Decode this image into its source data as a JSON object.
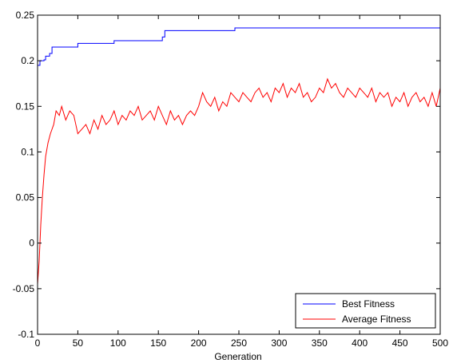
{
  "chart_data": {
    "type": "line",
    "title": "",
    "xlabel": "Generation",
    "ylabel": "",
    "xlim": [
      0,
      500
    ],
    "ylim": [
      -0.1,
      0.25
    ],
    "x_ticks": [
      0,
      50,
      100,
      150,
      200,
      250,
      300,
      350,
      400,
      450,
      500
    ],
    "y_ticks": [
      -0.1,
      -0.05,
      0,
      0.05,
      0.1,
      0.15,
      0.2,
      0.25
    ],
    "x_tick_labels": [
      "0",
      "50",
      "100",
      "150",
      "200",
      "250",
      "300",
      "350",
      "400",
      "450",
      "500"
    ],
    "y_tick_labels": [
      "-0.1",
      "-0.05",
      "0",
      "0.05",
      "0.1",
      "0.15",
      "0.2",
      "0.25"
    ],
    "grid": false,
    "legend_position": "bottom-right",
    "series": [
      {
        "name": "Best Fitness",
        "color": "#0000ff",
        "kind": "step",
        "points": [
          [
            0,
            0.195
          ],
          [
            3,
            0.2
          ],
          [
            8,
            0.201
          ],
          [
            10,
            0.205
          ],
          [
            15,
            0.208
          ],
          [
            18,
            0.215
          ],
          [
            50,
            0.219
          ],
          [
            95,
            0.222
          ],
          [
            155,
            0.226
          ],
          [
            158,
            0.233
          ],
          [
            245,
            0.236
          ],
          [
            500,
            0.237
          ]
        ]
      },
      {
        "name": "Average Fitness",
        "color": "#ff0000",
        "kind": "line",
        "points": [
          [
            0,
            -0.045
          ],
          [
            2,
            -0.02
          ],
          [
            4,
            0.02
          ],
          [
            6,
            0.05
          ],
          [
            8,
            0.075
          ],
          [
            10,
            0.095
          ],
          [
            13,
            0.11
          ],
          [
            16,
            0.12
          ],
          [
            20,
            0.13
          ],
          [
            23,
            0.145
          ],
          [
            27,
            0.14
          ],
          [
            30,
            0.15
          ],
          [
            35,
            0.135
          ],
          [
            40,
            0.145
          ],
          [
            45,
            0.14
          ],
          [
            50,
            0.12
          ],
          [
            55,
            0.125
          ],
          [
            60,
            0.13
          ],
          [
            65,
            0.12
          ],
          [
            70,
            0.135
          ],
          [
            75,
            0.125
          ],
          [
            80,
            0.14
          ],
          [
            85,
            0.13
          ],
          [
            90,
            0.135
          ],
          [
            95,
            0.145
          ],
          [
            100,
            0.13
          ],
          [
            105,
            0.14
          ],
          [
            110,
            0.135
          ],
          [
            115,
            0.145
          ],
          [
            120,
            0.14
          ],
          [
            125,
            0.15
          ],
          [
            130,
            0.135
          ],
          [
            135,
            0.14
          ],
          [
            140,
            0.145
          ],
          [
            145,
            0.135
          ],
          [
            150,
            0.15
          ],
          [
            155,
            0.14
          ],
          [
            160,
            0.13
          ],
          [
            165,
            0.145
          ],
          [
            170,
            0.135
          ],
          [
            175,
            0.14
          ],
          [
            180,
            0.13
          ],
          [
            185,
            0.14
          ],
          [
            190,
            0.145
          ],
          [
            195,
            0.14
          ],
          [
            200,
            0.15
          ],
          [
            205,
            0.165
          ],
          [
            210,
            0.155
          ],
          [
            215,
            0.15
          ],
          [
            220,
            0.16
          ],
          [
            225,
            0.145
          ],
          [
            230,
            0.155
          ],
          [
            235,
            0.15
          ],
          [
            240,
            0.165
          ],
          [
            245,
            0.16
          ],
          [
            250,
            0.155
          ],
          [
            255,
            0.165
          ],
          [
            260,
            0.16
          ],
          [
            265,
            0.155
          ],
          [
            270,
            0.165
          ],
          [
            275,
            0.17
          ],
          [
            280,
            0.16
          ],
          [
            285,
            0.165
          ],
          [
            290,
            0.155
          ],
          [
            295,
            0.17
          ],
          [
            300,
            0.165
          ],
          [
            305,
            0.175
          ],
          [
            310,
            0.16
          ],
          [
            315,
            0.17
          ],
          [
            320,
            0.165
          ],
          [
            325,
            0.175
          ],
          [
            330,
            0.16
          ],
          [
            335,
            0.165
          ],
          [
            340,
            0.155
          ],
          [
            345,
            0.16
          ],
          [
            350,
            0.17
          ],
          [
            355,
            0.165
          ],
          [
            360,
            0.18
          ],
          [
            365,
            0.17
          ],
          [
            370,
            0.175
          ],
          [
            375,
            0.165
          ],
          [
            380,
            0.16
          ],
          [
            385,
            0.17
          ],
          [
            390,
            0.165
          ],
          [
            395,
            0.16
          ],
          [
            400,
            0.17
          ],
          [
            405,
            0.165
          ],
          [
            410,
            0.16
          ],
          [
            415,
            0.17
          ],
          [
            420,
            0.155
          ],
          [
            425,
            0.165
          ],
          [
            430,
            0.16
          ],
          [
            435,
            0.165
          ],
          [
            440,
            0.15
          ],
          [
            445,
            0.16
          ],
          [
            450,
            0.155
          ],
          [
            455,
            0.165
          ],
          [
            460,
            0.15
          ],
          [
            465,
            0.16
          ],
          [
            470,
            0.165
          ],
          [
            475,
            0.155
          ],
          [
            480,
            0.16
          ],
          [
            485,
            0.15
          ],
          [
            490,
            0.165
          ],
          [
            495,
            0.15
          ],
          [
            500,
            0.17
          ]
        ]
      }
    ]
  }
}
